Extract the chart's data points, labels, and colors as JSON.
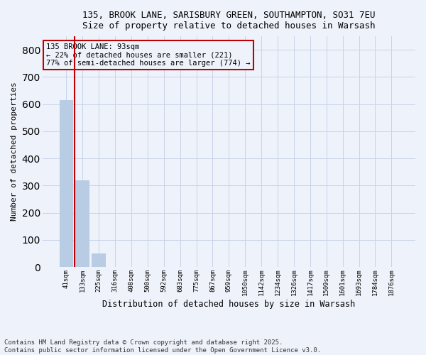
{
  "title1": "135, BROOK LANE, SARISBURY GREEN, SOUTHAMPTON, SO31 7EU",
  "title2": "Size of property relative to detached houses in Warsash",
  "xlabel": "Distribution of detached houses by size in Warsash",
  "ylabel": "Number of detached properties",
  "categories": [
    "41sqm",
    "133sqm",
    "225sqm",
    "316sqm",
    "408sqm",
    "500sqm",
    "592sqm",
    "683sqm",
    "775sqm",
    "867sqm",
    "959sqm",
    "1050sqm",
    "1142sqm",
    "1234sqm",
    "1326sqm",
    "1417sqm",
    "1509sqm",
    "1601sqm",
    "1693sqm",
    "1784sqm",
    "1876sqm"
  ],
  "values": [
    614,
    318,
    50,
    0,
    0,
    0,
    0,
    0,
    0,
    0,
    0,
    0,
    0,
    0,
    0,
    0,
    0,
    0,
    0,
    0,
    0
  ],
  "bar_color_default": "#b8cce4",
  "bar_color_highlight": "#c00000",
  "vline_x": 0.5,
  "annotation_text": "135 BROOK LANE: 93sqm\n← 22% of detached houses are smaller (221)\n77% of semi-detached houses are larger (774) →",
  "annotation_box_edgecolor": "#c00000",
  "ylim": [
    0,
    850
  ],
  "yticks": [
    0,
    100,
    200,
    300,
    400,
    500,
    600,
    700,
    800
  ],
  "grid_color": "#c8d4e8",
  "footnote1": "Contains HM Land Registry data © Crown copyright and database right 2025.",
  "footnote2": "Contains public sector information licensed under the Open Government Licence v3.0.",
  "bg_color": "#eef2fa"
}
